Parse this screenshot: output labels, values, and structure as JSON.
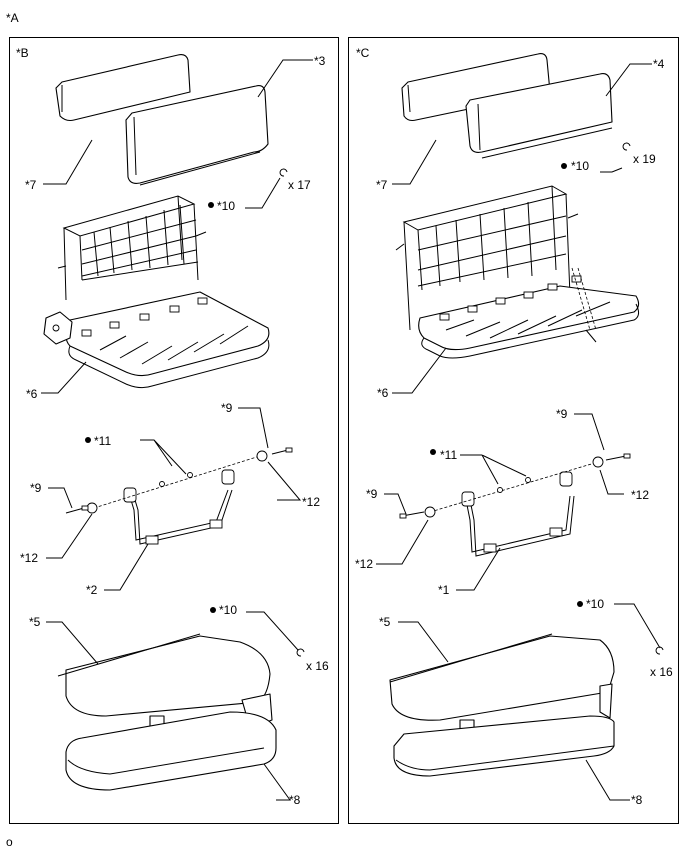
{
  "figure": {
    "main_label": "*A",
    "footer_code": "o"
  },
  "left_panel": {
    "label": "*B",
    "callouts": {
      "c3": "*3",
      "c7": "*7",
      "c10a": "*10",
      "qty10a": "x 17",
      "c6": "*6",
      "c9a": "*9",
      "c11": "*11",
      "c9b": "*9",
      "c12a": "*12",
      "c12b": "*12",
      "c2": "*2",
      "c5": "*5",
      "c10b": "*10",
      "qty10b": "x 16",
      "c8": "*8"
    }
  },
  "right_panel": {
    "label": "*C",
    "callouts": {
      "c4": "*4",
      "c10a": "*10",
      "qty10a": "x 19",
      "c7": "*7",
      "c6": "*6",
      "c9a": "*9",
      "c11": "*11",
      "c9b": "*9",
      "c12a": "*12",
      "c12b": "*12",
      "c1": "*1",
      "c10b": "*10",
      "c5": "*5",
      "qty10b": "x 16",
      "c8": "*8"
    }
  },
  "icons": {
    "bullet": "filled-circle-icon",
    "clip": "hog-ring-clip-icon"
  }
}
